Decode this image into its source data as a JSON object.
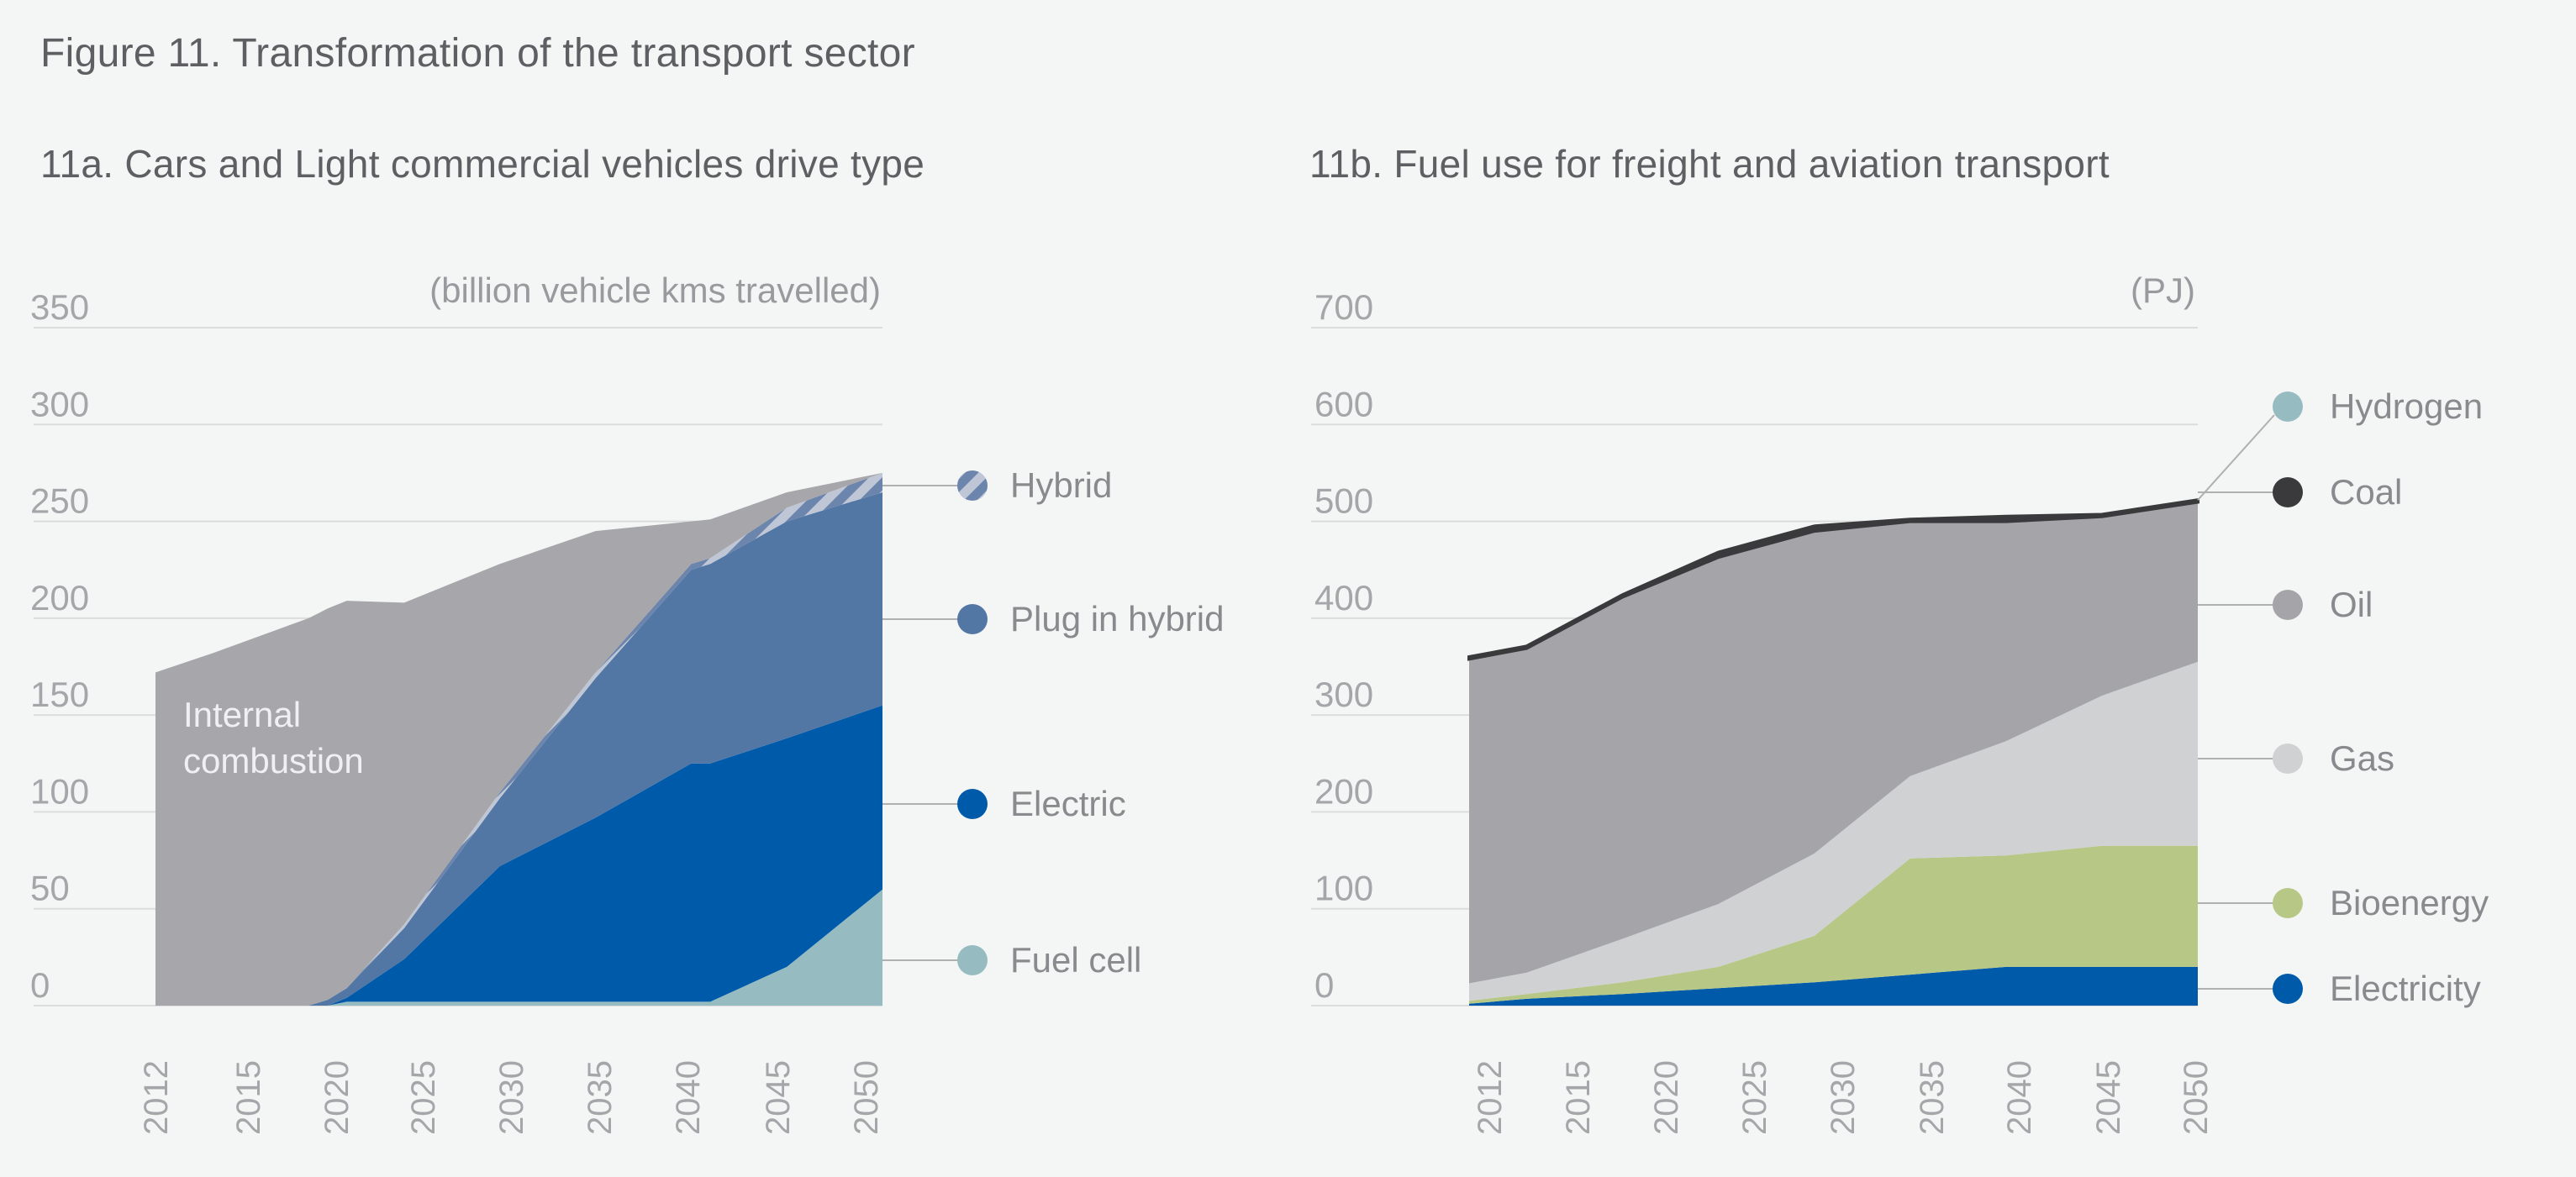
{
  "figure_title": "Figure 11. Transformation of the transport sector",
  "colors": {
    "internal_combustion": "#a7a7ab",
    "hybrid_stripe_a": "#bfc7d6",
    "hybrid_stripe_b": "#6c85ad",
    "plug_in_hybrid": "#5277a5",
    "electric": "#005aaa",
    "fuel_cell": "#96bcc1",
    "oil": "#a5a5a9",
    "gas": "#d0d1d3",
    "bioenergy": "#b7c886",
    "electricity": "#005aaa",
    "coal": "#3a3a3c",
    "hydrogen": "#96bcc1",
    "grid": "#dcdcdc",
    "leader": "#b0b0b0"
  },
  "chart_data": [
    {
      "type": "area",
      "stacked": true,
      "title": "11a. Cars and Light commercial vehicles drive type",
      "unit_label": "(billion vehicle kms travelled)",
      "ylim": [
        0,
        350
      ],
      "y_ticks": [
        350,
        300,
        250,
        200,
        150,
        100,
        50,
        0
      ],
      "x_tick_labels": [
        "2012",
        "2015",
        "2020",
        "2025",
        "2030",
        "2035",
        "2040",
        "2045",
        "2050"
      ],
      "x": [
        2012,
        2015,
        2020,
        2021,
        2022,
        2025,
        2030,
        2035,
        2040,
        2041,
        2045,
        2050
      ],
      "series": [
        {
          "name": "Fuel cell",
          "key": "fuel_cell",
          "values": [
            0,
            0,
            0,
            0,
            2,
            2,
            2,
            2,
            2,
            2,
            20,
            60
          ]
        },
        {
          "name": "Electric",
          "key": "electric",
          "values": [
            0,
            0,
            0,
            0,
            2,
            22,
            70,
            95,
            123,
            123,
            118,
            95
          ]
        },
        {
          "name": "Plug in hybrid",
          "key": "plug_in_hybrid",
          "values": [
            0,
            0,
            0,
            3,
            5,
            16,
            35,
            72,
            100,
            103,
            112,
            110
          ]
        },
        {
          "name": "Hybrid",
          "key": "hybrid",
          "values": [
            0,
            0,
            0,
            0,
            0,
            2,
            3,
            3,
            3,
            3,
            7,
            10
          ]
        },
        {
          "name": "Internal combustion",
          "key": "internal_combustion",
          "values": [
            172,
            182,
            200,
            202,
            200,
            166,
            118,
            73,
            22,
            20,
            8,
            0
          ]
        }
      ],
      "legend": [
        "Hybrid",
        "Plug in hybrid",
        "Electric",
        "Fuel cell"
      ],
      "annotation": "Internal\ncombustion"
    },
    {
      "type": "area",
      "stacked": true,
      "title": "11b. Fuel use for freight and aviation transport",
      "unit_label": "(PJ)",
      "ylim": [
        0,
        700
      ],
      "y_ticks": [
        700,
        600,
        500,
        400,
        300,
        200,
        100,
        0
      ],
      "x_tick_labels": [
        "2012",
        "2015",
        "2020",
        "2025",
        "2030",
        "2035",
        "2040",
        "2045",
        "2050"
      ],
      "x": [
        2012,
        2015,
        2020,
        2025,
        2030,
        2035,
        2040,
        2045,
        2050
      ],
      "series": [
        {
          "name": "Electricity",
          "key": "electricity",
          "values": [
            2,
            7,
            12,
            18,
            24,
            32,
            40,
            40,
            40
          ]
        },
        {
          "name": "Bioenergy",
          "key": "bioenergy",
          "values": [
            3,
            5,
            12,
            22,
            48,
            120,
            115,
            125,
            125
          ]
        },
        {
          "name": "Gas",
          "key": "gas",
          "values": [
            18,
            22,
            45,
            65,
            85,
            85,
            118,
            155,
            190
          ]
        },
        {
          "name": "Oil",
          "key": "oil",
          "values": [
            335,
            335,
            353,
            358,
            333,
            263,
            227,
            185,
            165
          ]
        },
        {
          "name": "Coal",
          "key": "coal",
          "values": [
            2,
            2,
            2,
            5,
            5,
            2,
            5,
            2,
            2
          ]
        },
        {
          "name": "Hydrogen",
          "key": "hydrogen",
          "values": [
            0,
            0,
            0,
            0,
            0,
            0,
            0,
            0,
            0
          ]
        }
      ],
      "legend": [
        "Hydrogen",
        "Coal",
        "Oil",
        "Gas",
        "Bioenergy",
        "Electricity"
      ]
    }
  ]
}
